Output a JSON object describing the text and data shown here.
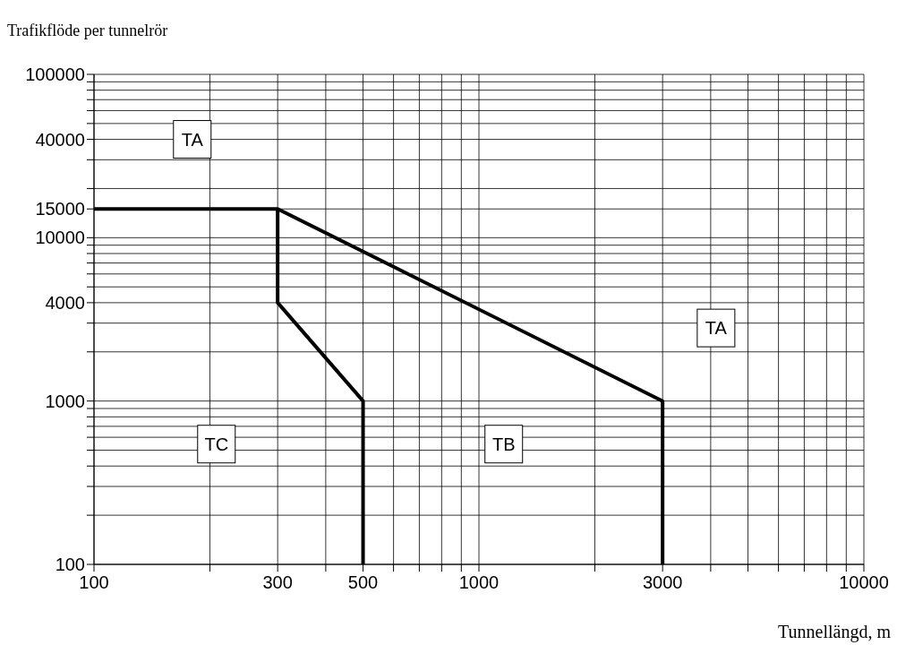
{
  "chart_data": {
    "type": "line",
    "title": "Trafikflöde per tunnelrör",
    "xlabel": "Tunnellängd, m",
    "log": "xy",
    "grid": true,
    "marker": "none",
    "line_style": "solid",
    "xlim": [
      100,
      10000
    ],
    "ylim": [
      100,
      100000
    ],
    "xticks": [
      100,
      {
        "value": 200,
        "label": null
      },
      300,
      {
        "value": 400,
        "label": null
      },
      500,
      {
        "value": 600,
        "label": null
      },
      {
        "value": 700,
        "label": null
      },
      {
        "value": 800,
        "label": null
      },
      {
        "value": 900,
        "label": null
      },
      1000,
      {
        "value": 2000,
        "label": null
      },
      3000,
      {
        "value": 4000,
        "label": null
      },
      {
        "value": 5000,
        "label": null
      },
      {
        "value": 6000,
        "label": null
      },
      {
        "value": 7000,
        "label": null
      },
      {
        "value": 8000,
        "label": null
      },
      {
        "value": 9000,
        "label": null
      },
      10000
    ],
    "yticks": [
      100,
      {
        "value": 200,
        "label": null
      },
      {
        "value": 300,
        "label": null
      },
      {
        "value": 400,
        "label": null
      },
      {
        "value": 500,
        "label": null
      },
      {
        "value": 600,
        "label": null
      },
      {
        "value": 700,
        "label": null
      },
      {
        "value": 800,
        "label": null
      },
      {
        "value": 900,
        "label": null
      },
      1000,
      {
        "value": 2000,
        "label": null
      },
      {
        "value": 3000,
        "label": null
      },
      4000,
      {
        "value": 5000,
        "label": null
      },
      {
        "value": 6000,
        "label": null
      },
      {
        "value": 7000,
        "label": null
      },
      {
        "value": 8000,
        "label": null
      },
      {
        "value": 9000,
        "label": null
      },
      10000,
      15000,
      {
        "value": 20000,
        "label": null
      },
      {
        "value": 30000,
        "label": null
      },
      40000,
      {
        "value": 50000,
        "label": null
      },
      {
        "value": 60000,
        "label": null
      },
      {
        "value": 70000,
        "label": null
      },
      {
        "value": 80000,
        "label": null
      },
      {
        "value": 90000,
        "label": null
      },
      100000
    ],
    "series": [
      {
        "color": "#000000",
        "x": [
          100,
          300,
          3000,
          3000
        ],
        "values": [
          15000,
          15000,
          1000,
          100
        ]
      },
      {
        "color": "#000000",
        "x": [
          300,
          300,
          500,
          500
        ],
        "values": [
          15000,
          4000,
          1000,
          100
        ]
      }
    ],
    "annotations": [
      {
        "text": "TA",
        "x": 180,
        "y": 40000
      },
      {
        "text": "TA",
        "x": 4130,
        "y": 2800
      },
      {
        "text": "TC",
        "x": 208,
        "y": 545
      },
      {
        "text": "TB",
        "x": 1160,
        "y": 545
      }
    ]
  }
}
